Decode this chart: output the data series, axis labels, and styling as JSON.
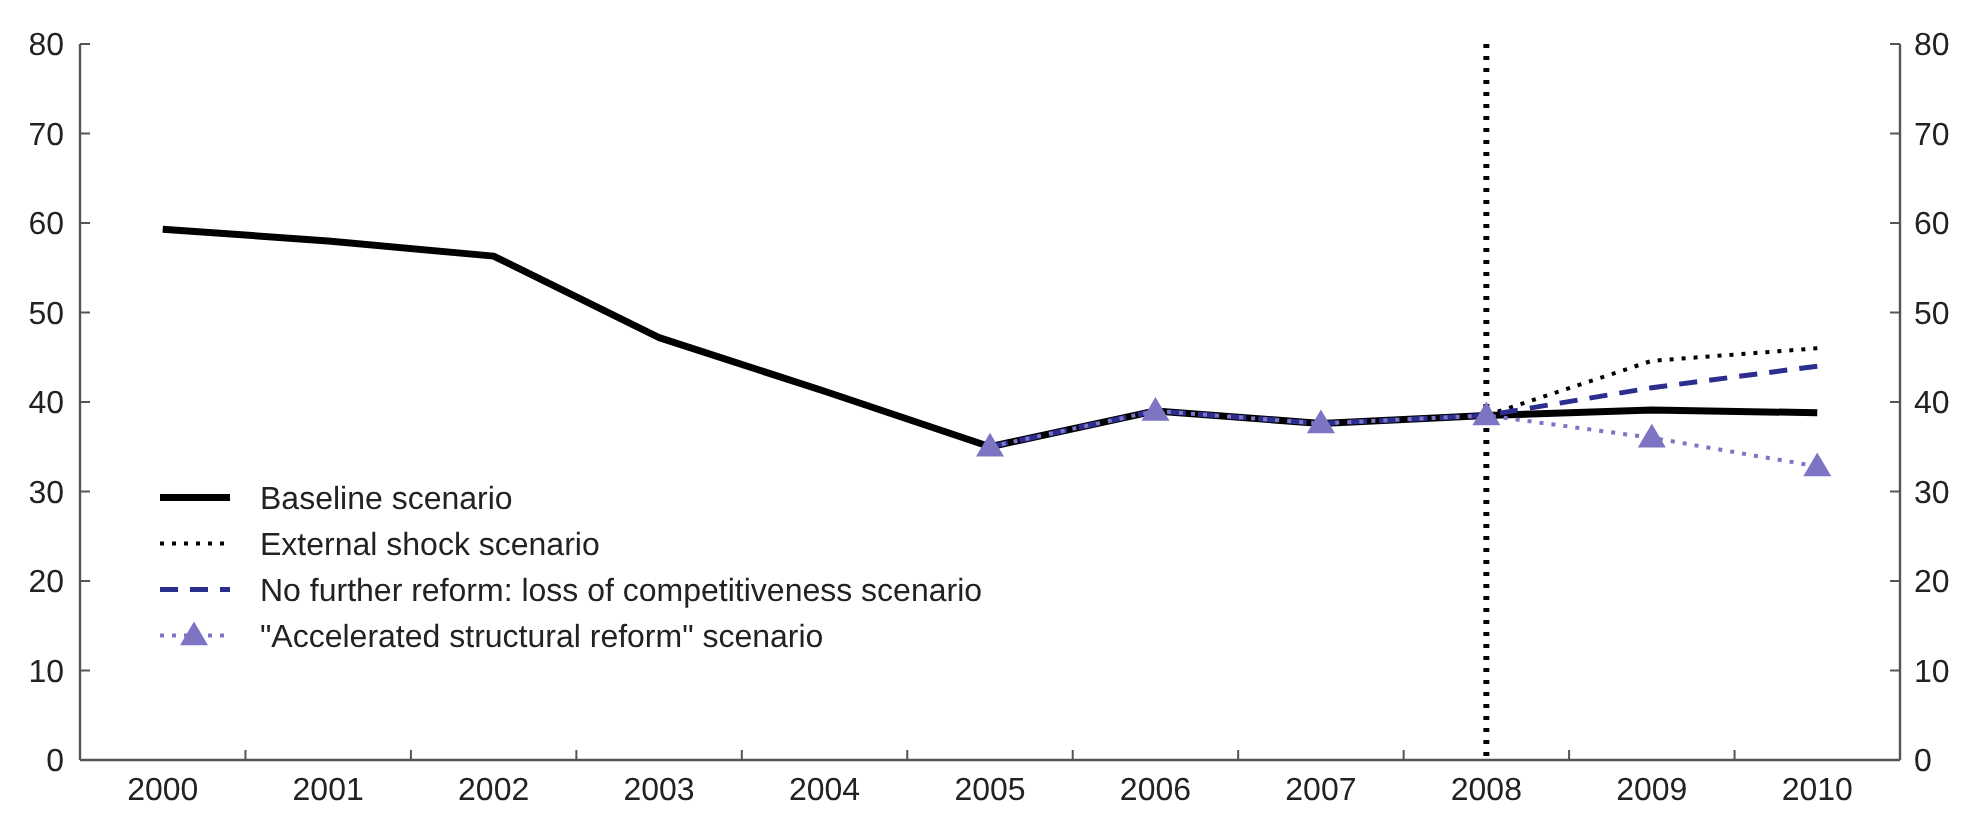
{
  "chart_data": {
    "type": "line",
    "categories": [
      "2000",
      "2001",
      "2002",
      "2003",
      "2004",
      "2005",
      "2006",
      "2007",
      "2008",
      "2009",
      "2010"
    ],
    "ylim": [
      0,
      80
    ],
    "yticks": [
      0,
      10,
      20,
      30,
      40,
      50,
      60,
      70,
      80
    ],
    "y2lim": [
      0,
      80
    ],
    "y2ticks": [
      0,
      10,
      20,
      30,
      40,
      50,
      60,
      70,
      80
    ],
    "grid": false,
    "legend": "bottom left",
    "marker": "none",
    "ref_lines": [
      {
        "axis": "x",
        "value": "2008",
        "color": "#000000",
        "line_style": "dotted"
      }
    ],
    "series": [
      {
        "name": "Baseline scenario",
        "color": "#000000",
        "line_style": "solid",
        "values": [
          59.3,
          58,
          56.3,
          47.2,
          41.2,
          35,
          39,
          37.6,
          38.5,
          39.1,
          38.8
        ]
      },
      {
        "name": "External shock scenario",
        "color": "#000000",
        "line_style": "dotted",
        "values": [
          null,
          null,
          null,
          null,
          null,
          null,
          null,
          null,
          38.5,
          44.6,
          46
        ]
      },
      {
        "name": "No further reform: loss of competitiveness scenario",
        "color": "#2b2d8f",
        "line_style": "dashed",
        "values": [
          null,
          null,
          null,
          null,
          null,
          35,
          39,
          37.6,
          38.5,
          41.6,
          44
        ]
      },
      {
        "name": "\"Accelerated structural reform\" scenario",
        "color": "#7d74c4",
        "line_style": "dotted",
        "marker": "triangle",
        "values": [
          null,
          null,
          null,
          null,
          null,
          35,
          39,
          37.6,
          38.5,
          36,
          32.8
        ]
      }
    ]
  }
}
